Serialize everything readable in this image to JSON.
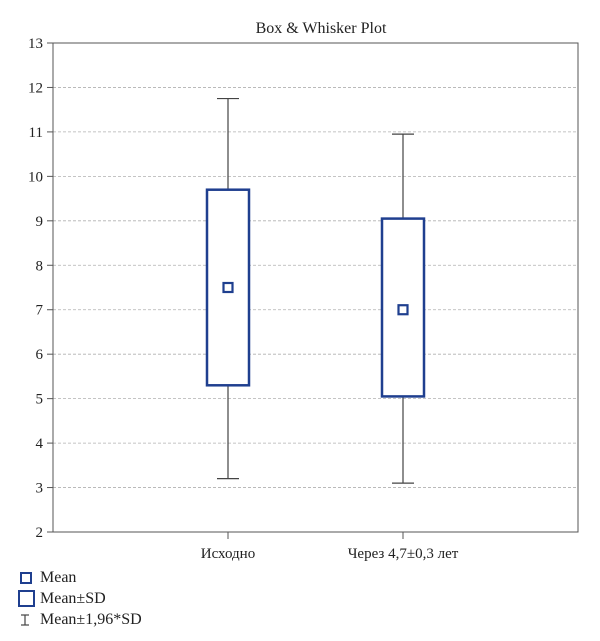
{
  "chart_data": {
    "type": "box",
    "title": "Box & Whisker Plot",
    "categories": [
      "Исходно",
      "Через 4,7±0,3 лет"
    ],
    "ylim": [
      2,
      13
    ],
    "yticks": [
      2,
      3,
      4,
      5,
      6,
      7,
      8,
      9,
      10,
      11,
      12,
      13
    ],
    "grid": true,
    "series": [
      {
        "category": "Исходно",
        "mean": 7.5,
        "sd_low": 5.3,
        "sd_high": 9.7,
        "whisker_low": 3.2,
        "whisker_high": 11.75
      },
      {
        "category": "Через 4,7±0,3 лет",
        "mean": 7.0,
        "sd_low": 5.05,
        "sd_high": 9.05,
        "whisker_low": 3.1,
        "whisker_high": 10.95
      }
    ],
    "legend": [
      {
        "symbol": "mean-square",
        "label": "Mean"
      },
      {
        "symbol": "sd-box",
        "label": "Mean±SD"
      },
      {
        "symbol": "whisker",
        "label": "Mean±1,96*SD"
      }
    ],
    "colors": {
      "box": "#1f3f8f",
      "whisker": "#444444",
      "grid": "#b0b0b0"
    }
  }
}
